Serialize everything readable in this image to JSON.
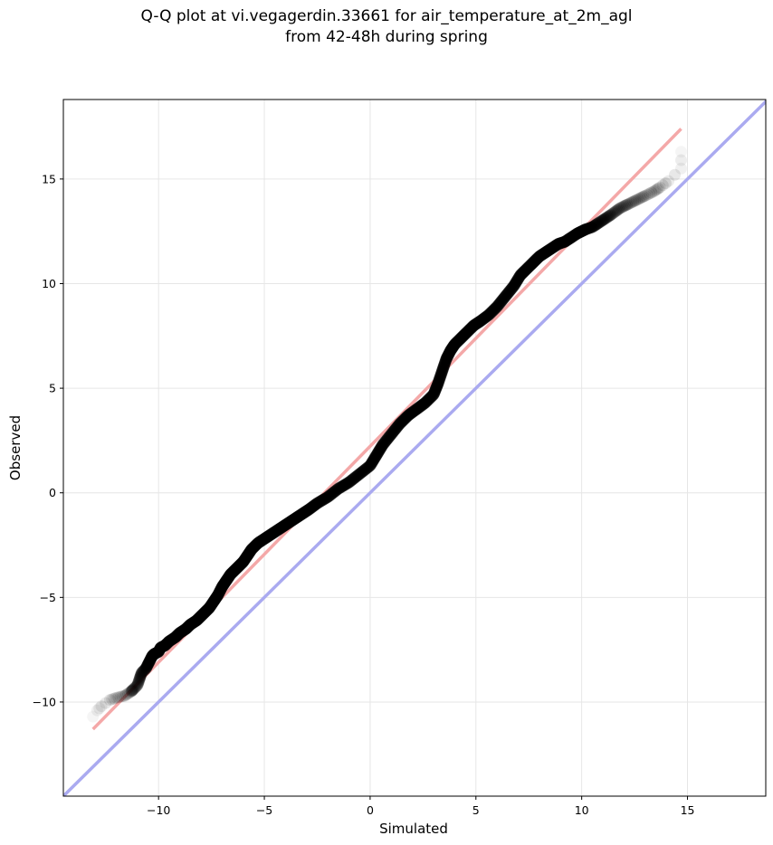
{
  "chart_data": {
    "type": "scatter",
    "title": "Q-Q plot at vi.vegagerdin.33661 for air_temperature_at_2m_agl",
    "subtitle": "from 42-48h during spring",
    "xlabel": "Simulated",
    "ylabel": "Observed",
    "xlim": [
      -14.5,
      18.7
    ],
    "ylim": [
      -14.5,
      18.8
    ],
    "xticks": [
      -10,
      -5,
      0,
      5,
      10,
      15
    ],
    "yticks": [
      -10,
      -5,
      0,
      5,
      10,
      15
    ],
    "xtick_labels": [
      "−10",
      "−5",
      "0",
      "5",
      "10",
      "15"
    ],
    "ytick_labels": [
      "−10",
      "−5",
      "0",
      "5",
      "10",
      "15"
    ],
    "grid": true,
    "reference_line": {
      "description": "identity y = x",
      "color": "#aaaaf0"
    },
    "fit_line": {
      "x": [
        -13.1,
        14.7
      ],
      "y": [
        -11.3,
        17.4
      ],
      "color": "#f4a8a8"
    },
    "point_color": "#000000",
    "quantiles": {
      "x": [
        -13.1,
        -12.9,
        -12.7,
        -12.3,
        -12.0,
        -11.6,
        -11.3,
        -11.2,
        -11.0,
        -10.9,
        -10.8,
        -10.6,
        -10.5,
        -10.4,
        -10.3,
        -10.2,
        -10.0,
        -9.9,
        -9.7,
        -9.5,
        -9.2,
        -9.0,
        -8.7,
        -8.5,
        -8.2,
        -8.0,
        -7.8,
        -7.6,
        -7.4,
        -7.2,
        -7.0,
        -6.8,
        -6.6,
        -6.4,
        -6.2,
        -6.0,
        -5.8,
        -5.6,
        -5.3,
        -5.0,
        -4.7,
        -4.4,
        -4.1,
        -3.8,
        -3.5,
        -3.2,
        -2.9,
        -2.5,
        -2.0,
        -1.5,
        -1.0,
        -0.5,
        0.0,
        0.3,
        0.6,
        1.0,
        1.4,
        1.8,
        2.2,
        2.6,
        3.0,
        3.2,
        3.4,
        3.6,
        3.8,
        4.0,
        4.3,
        4.6,
        4.9,
        5.2,
        5.6,
        6.0,
        6.4,
        6.8,
        7.1,
        7.4,
        7.7,
        8.0,
        8.3,
        8.6,
        8.9,
        9.2,
        9.5,
        9.8,
        10.0,
        10.2,
        10.5,
        10.8,
        11.1,
        11.4,
        11.8,
        12.2,
        12.6,
        13.0,
        13.4,
        13.7,
        14.1,
        14.7,
        14.7
      ],
      "y": [
        -10.7,
        -10.4,
        -10.2,
        -9.9,
        -9.8,
        -9.7,
        -9.5,
        -9.4,
        -9.2,
        -8.9,
        -8.6,
        -8.4,
        -8.2,
        -8.0,
        -7.8,
        -7.7,
        -7.6,
        -7.4,
        -7.3,
        -7.1,
        -6.9,
        -6.7,
        -6.5,
        -6.3,
        -6.1,
        -5.9,
        -5.7,
        -5.5,
        -5.2,
        -4.9,
        -4.5,
        -4.2,
        -3.9,
        -3.7,
        -3.5,
        -3.3,
        -3.0,
        -2.7,
        -2.4,
        -2.2,
        -2.0,
        -1.8,
        -1.6,
        -1.4,
        -1.2,
        -1.0,
        -0.8,
        -0.5,
        -0.2,
        0.2,
        0.5,
        0.9,
        1.3,
        1.8,
        2.3,
        2.8,
        3.3,
        3.7,
        4.0,
        4.3,
        4.7,
        5.2,
        5.8,
        6.4,
        6.8,
        7.1,
        7.4,
        7.7,
        8.0,
        8.2,
        8.5,
        8.9,
        9.4,
        9.9,
        10.4,
        10.7,
        11.0,
        11.3,
        11.5,
        11.7,
        11.9,
        12.0,
        12.2,
        12.4,
        12.5,
        12.6,
        12.7,
        12.9,
        13.1,
        13.3,
        13.6,
        13.8,
        14.0,
        14.2,
        14.4,
        14.6,
        14.9,
        15.5,
        16.3
      ]
    }
  }
}
